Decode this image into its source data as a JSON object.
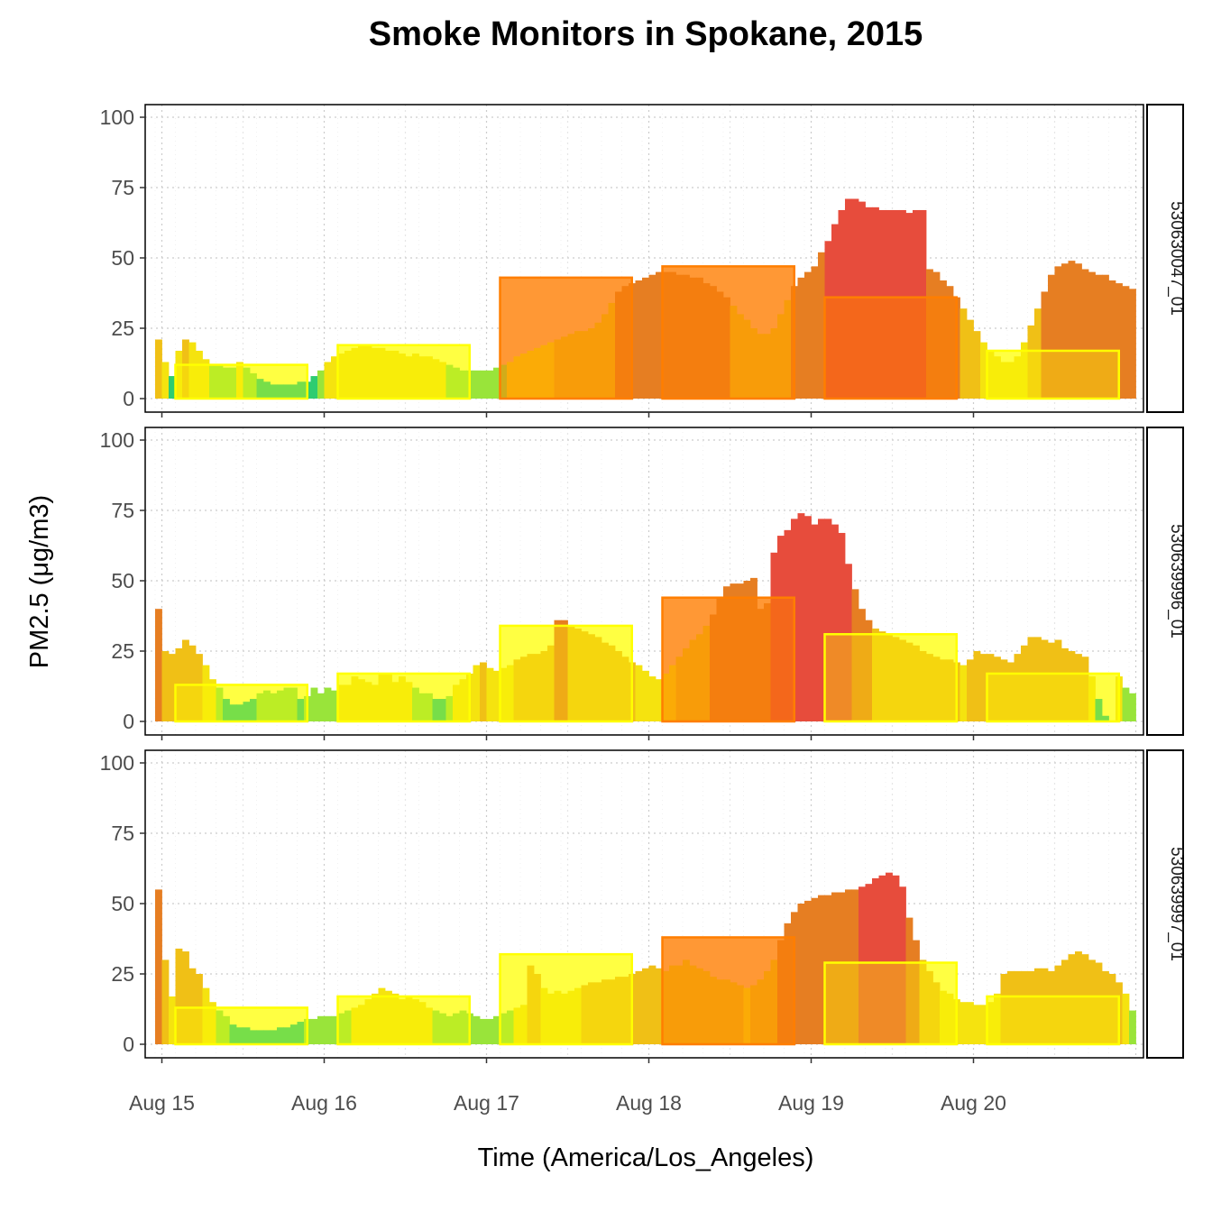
{
  "chart_data": {
    "type": "bar",
    "title": "Smoke Monitors in Spokane, 2015",
    "xlabel": "Time (America/Los_Angeles)",
    "ylabel": "PM2.5 (μg/m3)",
    "ylim": [
      0,
      100
    ],
    "yticks": [
      "0",
      "25",
      "50",
      "75",
      "100"
    ],
    "x_unit": "hourly",
    "x_start": "Aug 15 00:00",
    "xticks": [
      "Aug 15",
      "Aug 16",
      "Aug 17",
      "Aug 18",
      "Aug 19",
      "Aug 20"
    ],
    "grid": true,
    "legend": "none",
    "colors": {
      "good": "#2ecc71",
      "moderate_low": "#99e43a",
      "moderate": "#f5e30f",
      "moderate_high": "#f0c016",
      "usg": "#f5a00a",
      "usg_dark": "#e67e22",
      "unhealthy": "#e74c3c",
      "daily_box_yellow": "#ffff00",
      "daily_box_orange": "#ff7e00",
      "daily_fill_yellow": "#ffff66",
      "daily_fill_orange": "#ffb977"
    },
    "panels": [
      {
        "strip": "530630047_01",
        "series": [
          {
            "values_from_hour": -1,
            "values": [
              21,
              13,
              8,
              17,
              21,
              20,
              17,
              14,
              12,
              12,
              11,
              11,
              13,
              11,
              9,
              7,
              6,
              5,
              5,
              5,
              5,
              6,
              6,
              8,
              10,
              13,
              15,
              16,
              17,
              18,
              19,
              19,
              18,
              18,
              17,
              17,
              16,
              15,
              16,
              15,
              15,
              14,
              13,
              12,
              11,
              10,
              10,
              10,
              10,
              10,
              11,
              12,
              13,
              15,
              16,
              17,
              18,
              19,
              20,
              21,
              22,
              23,
              24,
              24,
              25,
              27,
              30,
              34,
              38,
              40,
              41,
              42,
              43,
              44,
              45,
              45,
              45,
              44,
              44,
              43,
              43,
              41,
              40,
              38,
              36,
              33,
              30,
              28,
              25,
              23,
              23,
              25,
              30,
              35,
              40,
              43,
              45,
              47,
              52,
              56,
              62,
              67,
              71,
              71,
              70,
              68,
              68,
              67,
              67,
              67,
              67,
              66,
              67,
              67,
              46,
              45,
              42,
              40,
              36,
              32,
              28,
              24,
              20,
              17,
              15,
              13,
              13,
              15,
              20,
              26,
              32,
              38,
              44,
              47,
              48,
              49,
              48,
              46,
              45,
              44,
              44,
              42,
              41,
              40,
              39,
              38,
              37,
              36,
              35,
              33,
              32,
              31,
              30,
              28,
              26,
              24,
              21,
              18,
              15,
              12,
              14,
              20,
              28,
              35,
              38,
              40,
              40,
              39,
              38,
              36,
              35,
              34,
              36,
              37,
              38,
              39,
              40,
              39,
              38,
              36,
              33,
              27,
              22,
              17,
              14,
              13,
              12,
              11,
              12,
              15,
              18,
              17,
              16,
              15,
              14,
              16,
              18,
              18,
              19,
              17,
              15,
              13,
              12,
              11,
              10,
              9,
              8,
              7,
              6,
              7,
              8,
              9
            ]
          }
        ],
        "daily_averages": [
          {
            "day": "Aug 15",
            "value": 12
          },
          {
            "day": "Aug 16",
            "value": 19
          },
          {
            "day": "Aug 17",
            "value": 43
          },
          {
            "day": "Aug 18",
            "value": 47
          },
          {
            "day": "Aug 19",
            "value": 36
          },
          {
            "day": "Aug 20",
            "value": 17
          }
        ]
      },
      {
        "strip": "530639996_01",
        "series": [
          {
            "values_from_hour": -1,
            "values": [
              40,
              25,
              24,
              26,
              29,
              27,
              24,
              20,
              15,
              12,
              8,
              6,
              6,
              7,
              8,
              10,
              11,
              10,
              11,
              12,
              12,
              8,
              9,
              12,
              10,
              12,
              11,
              13,
              13,
              16,
              15,
              14,
              13,
              17,
              17,
              14,
              16,
              14,
              12,
              10,
              10,
              8,
              8,
              9,
              13,
              15,
              17,
              20,
              21,
              19,
              18,
              19,
              20,
              22,
              23,
              24,
              24,
              25,
              27,
              36,
              36,
              34,
              33,
              32,
              31,
              30,
              28,
              27,
              25,
              23,
              21,
              20,
              18,
              16,
              15,
              17,
              20,
              23,
              26,
              29,
              31,
              34,
              38,
              44,
              48,
              49,
              49,
              50,
              51,
              40,
              42,
              60,
              66,
              68,
              72,
              74,
              73,
              70,
              72,
              72,
              70,
              67,
              56,
              47,
              40,
              36,
              33,
              32,
              31,
              30,
              29,
              28,
              27,
              25,
              24,
              23,
              22,
              22,
              21,
              20,
              22,
              25,
              24,
              24,
              23,
              22,
              21,
              24,
              27,
              30,
              30,
              29,
              28,
              29,
              26,
              25,
              24,
              23,
              16,
              8,
              2,
              0,
              16,
              12,
              10,
              22,
              25,
              38,
              40,
              42,
              44,
              45,
              46,
              45,
              44,
              42,
              42,
              43,
              44,
              45,
              45,
              46,
              46,
              45,
              42,
              35,
              28,
              20,
              17,
              15,
              14,
              13,
              12,
              11,
              11,
              12,
              12,
              11,
              11,
              12,
              12,
              11,
              10,
              10,
              9,
              8,
              8,
              7,
              7,
              7,
              7,
              8,
              9,
              10
            ]
          }
        ],
        "daily_averages": [
          {
            "day": "Aug 15",
            "value": 13
          },
          {
            "day": "Aug 16",
            "value": 17
          },
          {
            "day": "Aug 17",
            "value": 34
          },
          {
            "day": "Aug 18",
            "value": 44
          },
          {
            "day": "Aug 19",
            "value": 31
          },
          {
            "day": "Aug 20",
            "value": 17
          }
        ]
      },
      {
        "strip": "530639997_01",
        "series": [
          {
            "values_from_hour": -1,
            "values": [
              55,
              30,
              17,
              34,
              33,
              27,
              25,
              20,
              15,
              12,
              10,
              7,
              6,
              6,
              5,
              5,
              5,
              5,
              6,
              6,
              7,
              8,
              9,
              9,
              10,
              10,
              10,
              11,
              12,
              13,
              14,
              16,
              18,
              20,
              19,
              18,
              16,
              17,
              16,
              15,
              13,
              12,
              11,
              10,
              11,
              12,
              11,
              10,
              9,
              9,
              10,
              11,
              12,
              13,
              14,
              28,
              25,
              20,
              18,
              19,
              18,
              19,
              20,
              21,
              22,
              22,
              23,
              23,
              24,
              24,
              25,
              26,
              27,
              28,
              27,
              26,
              28,
              28,
              30,
              28,
              27,
              26,
              24,
              23,
              23,
              22,
              21,
              20,
              21,
              23,
              26,
              30,
              37,
              43,
              47,
              50,
              51,
              52,
              53,
              53,
              54,
              54,
              55,
              55,
              56,
              57,
              59,
              60,
              61,
              60,
              56,
              45,
              37,
              30,
              26,
              22,
              19,
              18,
              16,
              15,
              15,
              14,
              14,
              15,
              18,
              25,
              26,
              26,
              26,
              26,
              27,
              27,
              26,
              28,
              30,
              32,
              33,
              32,
              30,
              29,
              26,
              25,
              22,
              18,
              12,
              9,
              18,
              25,
              30,
              31,
              38,
              38,
              37,
              38,
              38,
              37,
              38,
              40,
              41,
              39,
              38,
              36,
              33,
              30,
              25,
              20,
              17,
              14,
              12,
              11,
              10,
              10,
              12,
              14,
              16,
              17,
              15,
              12,
              10,
              10,
              10,
              11,
              11,
              10,
              9,
              8,
              8,
              8,
              7,
              7,
              8,
              9,
              10
            ]
          }
        ],
        "daily_averages": [
          {
            "day": "Aug 15",
            "value": 13
          },
          {
            "day": "Aug 16",
            "value": 17
          },
          {
            "day": "Aug 17",
            "value": 32
          },
          {
            "day": "Aug 18",
            "value": 38
          },
          {
            "day": "Aug 19",
            "value": 29
          },
          {
            "day": "Aug 20",
            "value": 17
          }
        ]
      }
    ]
  }
}
